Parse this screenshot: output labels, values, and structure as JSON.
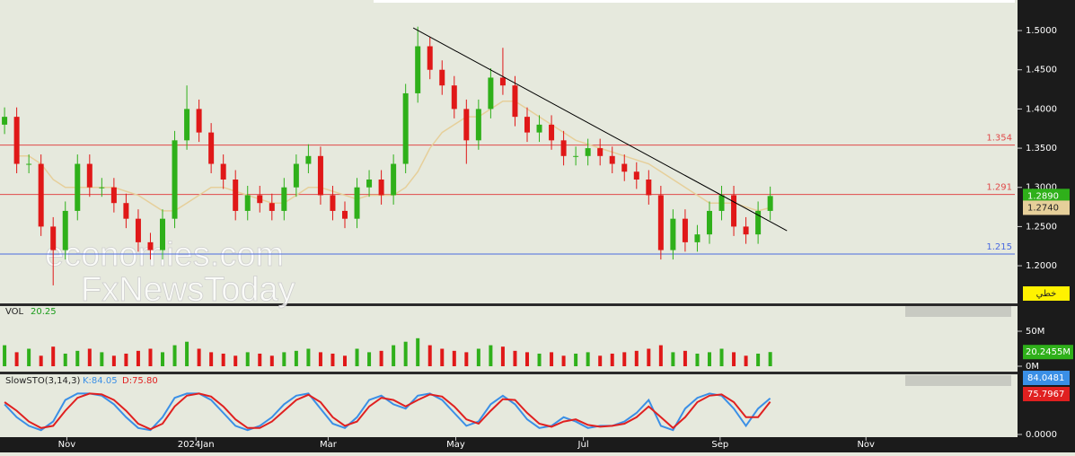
{
  "chart_data": {
    "type": "candlestick",
    "x": [
      1.5,
      5.5,
      9.5,
      13.5,
      17.5,
      21.5,
      25.5,
      29.5,
      33.5,
      37.5,
      41.5,
      45.5,
      49.5,
      53.5,
      57.5,
      61.5,
      65.5,
      69.5,
      73.5,
      77.5,
      81.5,
      85.5,
      89.5,
      93.5,
      97.5,
      101.5,
      105.5,
      109.5,
      113.5,
      117.5,
      121.5,
      125.5,
      129.5,
      133.5,
      137.5,
      141.5,
      145.5,
      149.5,
      153.5,
      157.5,
      161.5,
      165.5,
      169.5,
      173.5,
      177.5,
      181.5,
      185.5,
      189.5,
      193.5,
      197.5,
      201.5,
      205.5,
      209.5,
      213.5,
      217.5,
      221.5,
      225.5,
      229.5,
      233.5,
      237.5,
      241.5,
      245.5,
      249.5,
      253.5
    ],
    "open": [
      1.38,
      1.39,
      1.33,
      1.33,
      1.25,
      1.22,
      1.27,
      1.33,
      1.3,
      1.3,
      1.28,
      1.26,
      1.23,
      1.22,
      1.26,
      1.36,
      1.4,
      1.37,
      1.33,
      1.31,
      1.27,
      1.29,
      1.28,
      1.27,
      1.3,
      1.33,
      1.34,
      1.29,
      1.27,
      1.26,
      1.3,
      1.31,
      1.29,
      1.33,
      1.42,
      1.48,
      1.45,
      1.43,
      1.4,
      1.36,
      1.4,
      1.44,
      1.43,
      1.39,
      1.37,
      1.38,
      1.36,
      1.34,
      1.34,
      1.35,
      1.34,
      1.33,
      1.32,
      1.31,
      1.29,
      1.22,
      1.26,
      1.23,
      1.24,
      1.27,
      1.29,
      1.25,
      1.24,
      1.27
    ],
    "high": [
      1.402,
      1.402,
      1.342,
      1.342,
      1.262,
      1.282,
      1.342,
      1.342,
      1.312,
      1.312,
      1.292,
      1.272,
      1.242,
      1.272,
      1.372,
      1.43,
      1.412,
      1.382,
      1.342,
      1.322,
      1.302,
      1.302,
      1.292,
      1.312,
      1.342,
      1.355,
      1.352,
      1.302,
      1.282,
      1.312,
      1.322,
      1.322,
      1.342,
      1.432,
      1.505,
      1.492,
      1.462,
      1.442,
      1.412,
      1.412,
      1.452,
      1.478,
      1.442,
      1.402,
      1.392,
      1.392,
      1.372,
      1.352,
      1.362,
      1.362,
      1.352,
      1.342,
      1.332,
      1.322,
      1.302,
      1.272,
      1.272,
      1.252,
      1.282,
      1.302,
      1.302,
      1.262,
      1.282,
      1.301
    ],
    "low": [
      1.368,
      1.318,
      1.318,
      1.238,
      1.175,
      1.208,
      1.258,
      1.288,
      1.288,
      1.268,
      1.248,
      1.218,
      1.208,
      1.208,
      1.248,
      1.348,
      1.358,
      1.318,
      1.298,
      1.258,
      1.258,
      1.268,
      1.258,
      1.258,
      1.288,
      1.318,
      1.278,
      1.258,
      1.248,
      1.248,
      1.288,
      1.278,
      1.278,
      1.318,
      1.408,
      1.438,
      1.418,
      1.388,
      1.33,
      1.348,
      1.388,
      1.418,
      1.378,
      1.358,
      1.358,
      1.348,
      1.328,
      1.328,
      1.328,
      1.328,
      1.318,
      1.308,
      1.298,
      1.278,
      1.208,
      1.208,
      1.218,
      1.218,
      1.228,
      1.258,
      1.238,
      1.228,
      1.228,
      1.258
    ],
    "close": [
      1.39,
      1.33,
      1.33,
      1.25,
      1.22,
      1.27,
      1.33,
      1.3,
      1.3,
      1.28,
      1.26,
      1.23,
      1.22,
      1.26,
      1.36,
      1.4,
      1.37,
      1.33,
      1.31,
      1.27,
      1.29,
      1.28,
      1.27,
      1.3,
      1.33,
      1.34,
      1.29,
      1.27,
      1.26,
      1.3,
      1.31,
      1.29,
      1.33,
      1.42,
      1.48,
      1.45,
      1.43,
      1.4,
      1.36,
      1.4,
      1.44,
      1.43,
      1.39,
      1.37,
      1.38,
      1.36,
      1.34,
      1.34,
      1.35,
      1.34,
      1.33,
      1.32,
      1.31,
      1.29,
      1.22,
      1.26,
      1.23,
      1.24,
      1.27,
      1.29,
      1.25,
      1.24,
      1.27,
      1.289
    ],
    "up_color": "#2fb01a",
    "down_color": "#e01818",
    "last_close_label": "1.2890",
    "ma": {
      "color": "#e6cf9a",
      "last_label": "1.2740",
      "values": [
        null,
        1.34,
        1.34,
        1.33,
        1.31,
        1.3,
        1.3,
        1.3,
        1.3,
        1.3,
        1.295,
        1.29,
        1.28,
        1.27,
        1.27,
        1.28,
        1.29,
        1.3,
        1.3,
        1.295,
        1.29,
        1.285,
        1.28,
        1.28,
        1.29,
        1.3,
        1.3,
        1.295,
        1.29,
        1.285,
        1.29,
        1.29,
        1.29,
        1.3,
        1.32,
        1.35,
        1.37,
        1.38,
        1.39,
        1.39,
        1.4,
        1.41,
        1.41,
        1.4,
        1.39,
        1.38,
        1.37,
        1.36,
        1.355,
        1.35,
        1.345,
        1.34,
        1.335,
        1.33,
        1.32,
        1.31,
        1.3,
        1.29,
        1.28,
        1.28,
        1.28,
        1.275,
        1.27,
        1.274
      ]
    },
    "trendline": {
      "color": "#000000",
      "x": [
        136,
        259
      ],
      "y": [
        1.5034,
        1.2447
      ]
    },
    "levels": [
      {
        "value": 1.354,
        "color": "#e04a4a"
      },
      {
        "value": 1.291,
        "color": "#e04a4a"
      },
      {
        "value": 1.215,
        "color": "#4a6ae0"
      }
    ],
    "xlim": [
      0,
      334
    ],
    "xticks": [
      {
        "value": 22,
        "label": "Nov"
      },
      {
        "value": 64.5,
        "label": "2024Jan"
      },
      {
        "value": 108,
        "label": "Mar"
      },
      {
        "value": 150,
        "label": "May"
      },
      {
        "value": 192,
        "label": "Jul"
      },
      {
        "value": 237,
        "label": "Sep"
      },
      {
        "value": 285,
        "label": "Nov"
      }
    ],
    "ylim": [
      1.152,
      1.539
    ],
    "yticks": [
      {
        "value": 1.2,
        "label": "1.2000"
      },
      {
        "value": 1.25,
        "label": "1.2500"
      },
      {
        "value": 1.3,
        "label": "1.3000"
      },
      {
        "value": 1.35,
        "label": "1.3500"
      },
      {
        "value": 1.4,
        "label": "1.4000"
      },
      {
        "value": 1.45,
        "label": "1.4500"
      },
      {
        "value": 1.5,
        "label": "1.5000"
      }
    ],
    "mode_label": "خطي",
    "watermark": [
      "economies.com",
      "FxNewsToday"
    ],
    "volume": {
      "title": "VOL",
      "readout": "20.25",
      "values": [
        30,
        20,
        25,
        15,
        28,
        18,
        22,
        25,
        20,
        15,
        18,
        22,
        25,
        20,
        30,
        35,
        25,
        20,
        18,
        15,
        20,
        18,
        15,
        20,
        22,
        25,
        20,
        18,
        15,
        25,
        20,
        22,
        30,
        35,
        40,
        30,
        25,
        22,
        20,
        25,
        30,
        28,
        22,
        20,
        18,
        20,
        15,
        18,
        20,
        15,
        18,
        20,
        22,
        25,
        30,
        20,
        22,
        18,
        20,
        25,
        20,
        15,
        18,
        20.2455
      ],
      "last_label": "20.2455M",
      "ylim": [
        0,
        70
      ],
      "yticks": [
        {
          "value": 0,
          "label": "0M"
        },
        {
          "value": 50,
          "label": "50M"
        }
      ]
    },
    "stochastic": {
      "title": "SlowSTO(3,14,3)",
      "ylim": [
        0,
        100
      ],
      "yticks": [
        {
          "value": 0,
          "label": "0.0000"
        }
      ],
      "series": [
        {
          "name": "K:84.05",
          "color": "#3a8fe6",
          "values": [
            70,
            40,
            20,
            10,
            30,
            80,
            95,
            95,
            90,
            70,
            40,
            15,
            10,
            40,
            85,
            95,
            95,
            80,
            50,
            20,
            10,
            20,
            40,
            70,
            90,
            95,
            60,
            25,
            15,
            40,
            80,
            90,
            70,
            60,
            90,
            95,
            80,
            50,
            20,
            30,
            70,
            90,
            70,
            35,
            15,
            20,
            40,
            30,
            15,
            20,
            20,
            30,
            50,
            80,
            20,
            10,
            60,
            85,
            95,
            90,
            60,
            20,
            60,
            84.0481
          ]
        },
        {
          "name": "D:75.80",
          "color": "#e02020",
          "values": [
            75,
            55,
            30,
            15,
            20,
            55,
            85,
            95,
            93,
            80,
            55,
            25,
            12,
            25,
            65,
            90,
            95,
            88,
            65,
            35,
            15,
            15,
            30,
            55,
            80,
            92,
            75,
            40,
            20,
            30,
            65,
            85,
            80,
            65,
            80,
            93,
            88,
            65,
            35,
            25,
            55,
            82,
            80,
            50,
            25,
            18,
            30,
            35,
            22,
            18,
            20,
            25,
            40,
            65,
            40,
            15,
            40,
            75,
            90,
            93,
            75,
            40,
            40,
            75.7967
          ]
        }
      ]
    }
  }
}
